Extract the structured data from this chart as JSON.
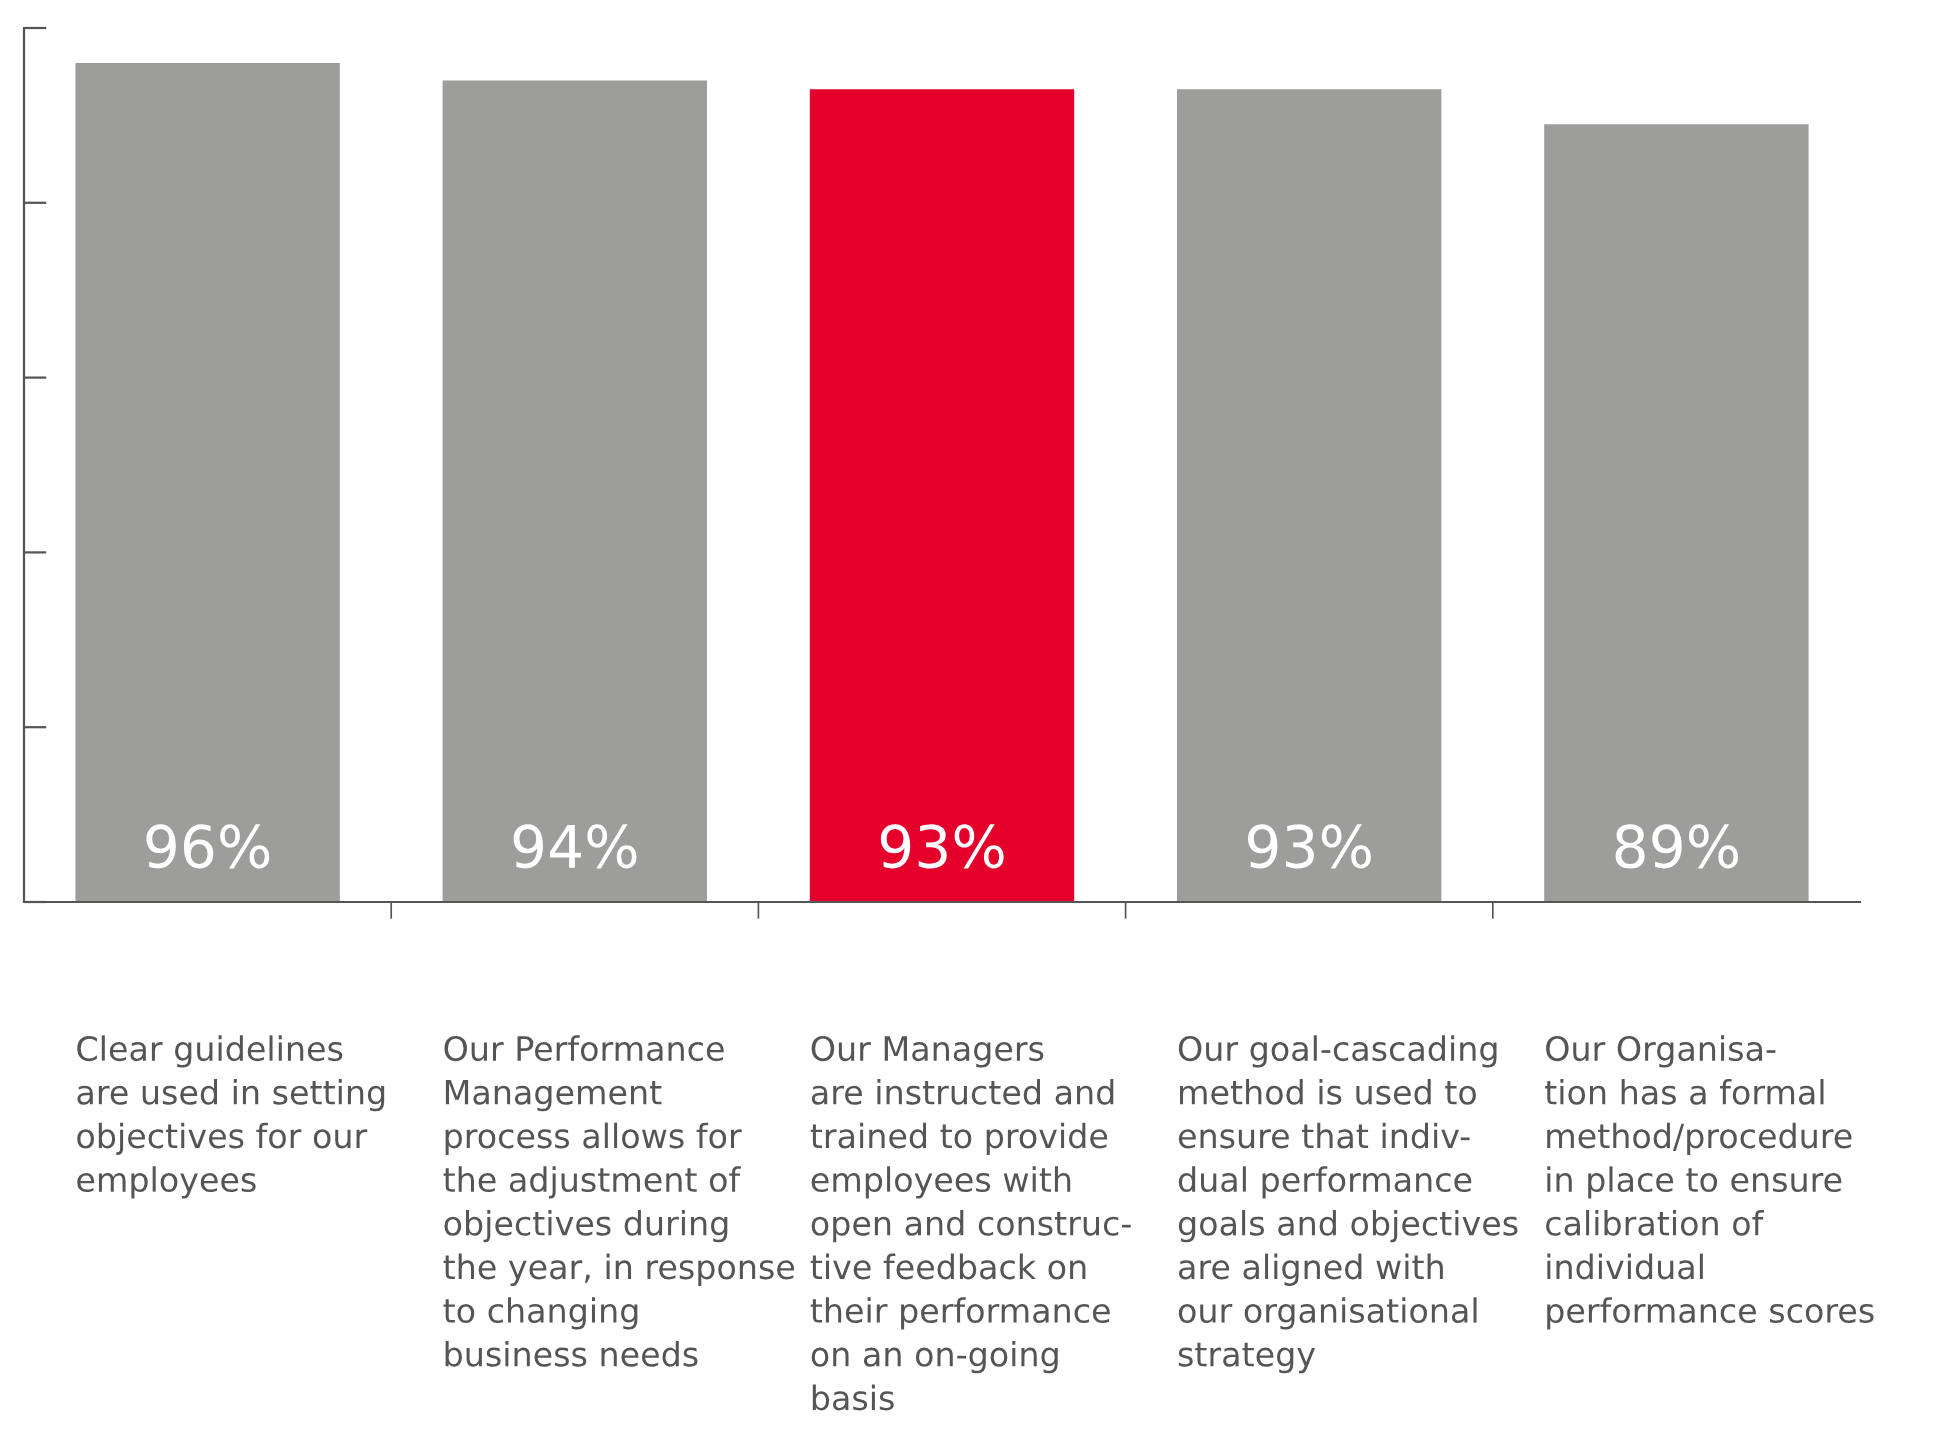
{
  "chart_data": {
    "type": "bar",
    "categories": [
      "Clear guidelines\nare used in setting\nobjectives for our\nemployees",
      "Our Performance\nManagement\nprocess allows for\nthe adjustment of\nobjectives during\nthe year, in response\nto changing\nbusiness needs",
      "Our Managers\nare instructed and\ntrained to provide\nemployees with\nopen and construc-\ntive feedback on\ntheir performance\non an on-going\nbasis",
      "Our goal-cascading\nmethod is used to\nensure that indiv-\ndual performance\ngoals and objectives\nare aligned with\nour organisational\nstrategy",
      "Our Organisa-\ntion has a formal\nmethod/procedure\nin place to ensure\ncalibration of\nindividual\nperformance scores"
    ],
    "values": [
      96,
      94,
      93,
      93,
      89
    ],
    "colors": [
      "#9d9d9c",
      "#9d9d9c",
      "#e4002b",
      "#9d9d9c",
      "#9d9d9c"
    ],
    "value_labels": [
      "96%",
      "94%",
      "93%",
      "93%",
      "89%"
    ],
    "ylim": [
      0,
      100
    ],
    "yticks": [
      {
        "value": 0,
        "label": null
      },
      {
        "value": 20,
        "label": null
      },
      {
        "value": 40,
        "label": null
      },
      {
        "value": 60,
        "label": null
      },
      {
        "value": 80,
        "label": null
      },
      {
        "value": 100,
        "label": null
      }
    ],
    "tick_labels": "x",
    "grid": false,
    "legend": false
  }
}
